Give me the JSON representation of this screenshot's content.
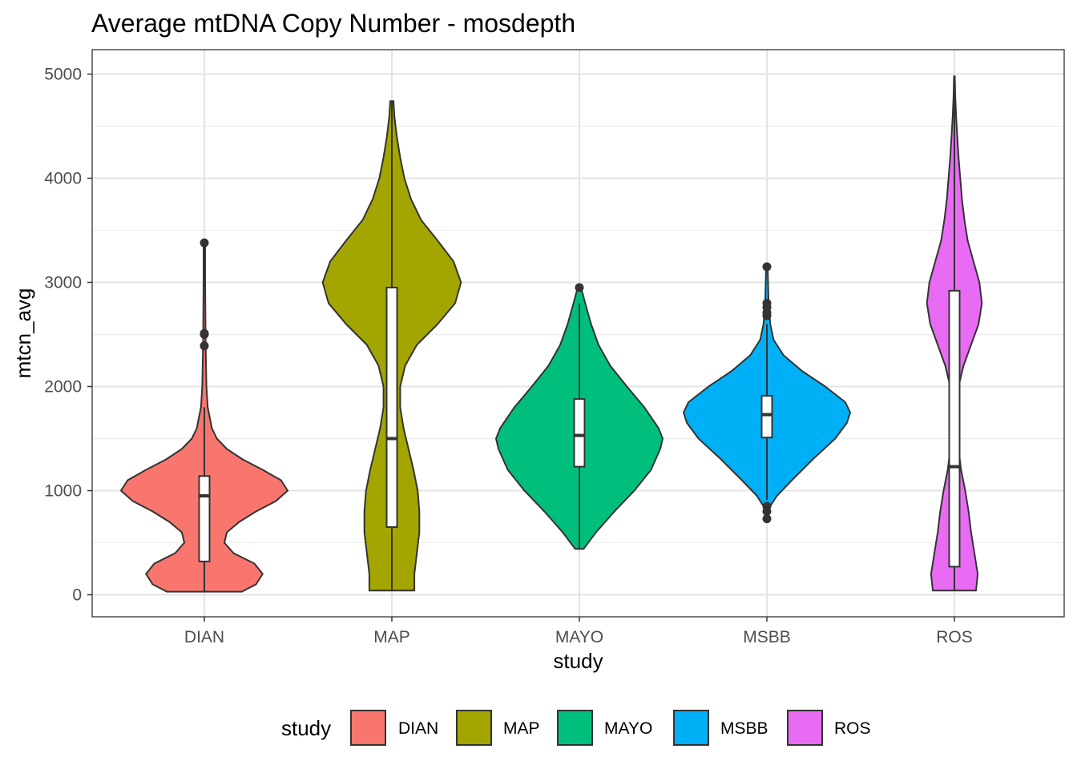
{
  "chart_data": {
    "type": "violin",
    "title": "Average mtDNA Copy Number - mosdepth",
    "xlabel": "study",
    "ylabel": "mtcn_avg",
    "categories": [
      "DIAN",
      "MAP",
      "MAYO",
      "MSBB",
      "ROS"
    ],
    "ylim": [
      -200,
      5230
    ],
    "yticks": [
      0,
      1000,
      2000,
      3000,
      4000,
      5000
    ],
    "grid": true,
    "legend": {
      "title": "study",
      "position": "bottom",
      "entries": [
        "DIAN",
        "MAP",
        "MAYO",
        "MSBB",
        "ROS"
      ]
    },
    "colors": {
      "DIAN": "#F8766D",
      "MAP": "#A3A500",
      "MAYO": "#00BF7D",
      "MSBB": "#00B0F6",
      "ROS": "#E76BF3"
    },
    "series": [
      {
        "name": "DIAN",
        "box": {
          "min": 30,
          "q1": 320,
          "median": 950,
          "q3": 1140,
          "max": 1800
        },
        "outliers": [
          2390,
          2500,
          2510,
          3380
        ],
        "density_profile": [
          [
            30,
            0.45
          ],
          [
            100,
            0.62
          ],
          [
            200,
            0.7
          ],
          [
            300,
            0.6
          ],
          [
            400,
            0.35
          ],
          [
            500,
            0.24
          ],
          [
            600,
            0.27
          ],
          [
            700,
            0.42
          ],
          [
            800,
            0.62
          ],
          [
            900,
            0.86
          ],
          [
            1000,
            1.0
          ],
          [
            1100,
            0.92
          ],
          [
            1200,
            0.7
          ],
          [
            1300,
            0.46
          ],
          [
            1400,
            0.27
          ],
          [
            1500,
            0.15
          ],
          [
            1600,
            0.09
          ],
          [
            1800,
            0.04
          ],
          [
            2000,
            0.025
          ],
          [
            2400,
            0.015
          ],
          [
            3000,
            0.01
          ],
          [
            3380,
            0.01
          ]
        ]
      },
      {
        "name": "MAP",
        "box": {
          "min": 40,
          "q1": 650,
          "median": 1500,
          "q3": 2950,
          "max": 4740
        },
        "outliers": [],
        "density_profile": [
          [
            40,
            0.27
          ],
          [
            200,
            0.27
          ],
          [
            400,
            0.3
          ],
          [
            600,
            0.33
          ],
          [
            800,
            0.33
          ],
          [
            1000,
            0.31
          ],
          [
            1200,
            0.26
          ],
          [
            1400,
            0.2
          ],
          [
            1600,
            0.14
          ],
          [
            1800,
            0.1
          ],
          [
            2000,
            0.1
          ],
          [
            2200,
            0.16
          ],
          [
            2400,
            0.3
          ],
          [
            2600,
            0.55
          ],
          [
            2800,
            0.76
          ],
          [
            3000,
            0.83
          ],
          [
            3200,
            0.74
          ],
          [
            3400,
            0.55
          ],
          [
            3600,
            0.35
          ],
          [
            3800,
            0.23
          ],
          [
            4000,
            0.15
          ],
          [
            4200,
            0.1
          ],
          [
            4400,
            0.06
          ],
          [
            4600,
            0.03
          ],
          [
            4740,
            0.02
          ]
        ]
      },
      {
        "name": "MAYO",
        "box": {
          "min": 440,
          "q1": 1230,
          "median": 1530,
          "q3": 1880,
          "max": 2800
        },
        "outliers": [
          2950
        ],
        "density_profile": [
          [
            440,
            0.05
          ],
          [
            600,
            0.2
          ],
          [
            800,
            0.42
          ],
          [
            1000,
            0.66
          ],
          [
            1200,
            0.86
          ],
          [
            1400,
            0.97
          ],
          [
            1500,
            1.0
          ],
          [
            1600,
            0.95
          ],
          [
            1800,
            0.78
          ],
          [
            2000,
            0.57
          ],
          [
            2200,
            0.37
          ],
          [
            2400,
            0.23
          ],
          [
            2600,
            0.14
          ],
          [
            2800,
            0.07
          ],
          [
            2950,
            0.02
          ]
        ]
      },
      {
        "name": "MSBB",
        "box": {
          "min": 910,
          "q1": 1510,
          "median": 1730,
          "q3": 1910,
          "max": 2600
        },
        "outliers": [
          730,
          800,
          850,
          2680,
          2710,
          2760,
          2800,
          3150
        ],
        "density_profile": [
          [
            730,
            0.01
          ],
          [
            850,
            0.04
          ],
          [
            950,
            0.12
          ],
          [
            1100,
            0.3
          ],
          [
            1300,
            0.55
          ],
          [
            1500,
            0.82
          ],
          [
            1650,
            0.96
          ],
          [
            1750,
            1.0
          ],
          [
            1850,
            0.94
          ],
          [
            2000,
            0.7
          ],
          [
            2150,
            0.42
          ],
          [
            2300,
            0.2
          ],
          [
            2450,
            0.08
          ],
          [
            2600,
            0.04
          ],
          [
            2800,
            0.02
          ],
          [
            3150,
            0.01
          ]
        ]
      },
      {
        "name": "ROS",
        "box": {
          "min": 40,
          "q1": 270,
          "median": 1230,
          "q3": 2920,
          "max": 4980
        },
        "outliers": [],
        "density_profile": [
          [
            40,
            0.26
          ],
          [
            200,
            0.28
          ],
          [
            400,
            0.24
          ],
          [
            600,
            0.2
          ],
          [
            800,
            0.17
          ],
          [
            1000,
            0.13
          ],
          [
            1200,
            0.08
          ],
          [
            1400,
            0.05
          ],
          [
            1600,
            0.035
          ],
          [
            1800,
            0.03
          ],
          [
            2000,
            0.05
          ],
          [
            2200,
            0.11
          ],
          [
            2400,
            0.2
          ],
          [
            2600,
            0.29
          ],
          [
            2800,
            0.33
          ],
          [
            3000,
            0.3
          ],
          [
            3200,
            0.23
          ],
          [
            3400,
            0.16
          ],
          [
            3600,
            0.12
          ],
          [
            3800,
            0.09
          ],
          [
            4000,
            0.07
          ],
          [
            4200,
            0.05
          ],
          [
            4400,
            0.035
          ],
          [
            4600,
            0.02
          ],
          [
            4800,
            0.01
          ],
          [
            4980,
            0.005
          ]
        ]
      }
    ]
  }
}
